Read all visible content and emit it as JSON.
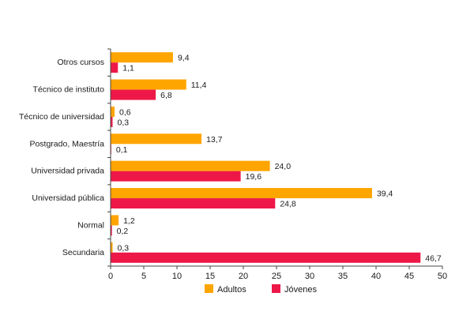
{
  "chart_data": {
    "type": "bar",
    "orientation": "horizontal",
    "categories": [
      "Otros cursos",
      "Técnico de instituto",
      "Técnico de universidad",
      "Postgrado, Maestría",
      "Universidad privada",
      "Universidad pública",
      "Normal",
      "Secundaria"
    ],
    "series": [
      {
        "name": "Adultos",
        "color": "#ffa500",
        "values": [
          9.4,
          11.4,
          0.6,
          13.7,
          24.0,
          39.4,
          1.2,
          0.3
        ],
        "labels": [
          "9,4",
          "11,4",
          "0,6",
          "13,7",
          "24,0",
          "39,4",
          "1,2",
          "0,3"
        ]
      },
      {
        "name": "Jóvenes",
        "color": "#ee1848",
        "values": [
          1.1,
          6.8,
          0.3,
          0.1,
          19.6,
          24.8,
          0.2,
          46.7
        ],
        "labels": [
          "1,1",
          "6,8",
          "0,3",
          "0,1",
          "19,6",
          "24,8",
          "0,2",
          "46,7"
        ]
      }
    ],
    "xlim": [
      0,
      50
    ],
    "xticks": [
      0,
      5,
      10,
      15,
      20,
      25,
      30,
      35,
      40,
      45,
      50
    ],
    "title": "",
    "xlabel": "",
    "ylabel": "",
    "grid": false,
    "legend_position": "bottom-center"
  }
}
